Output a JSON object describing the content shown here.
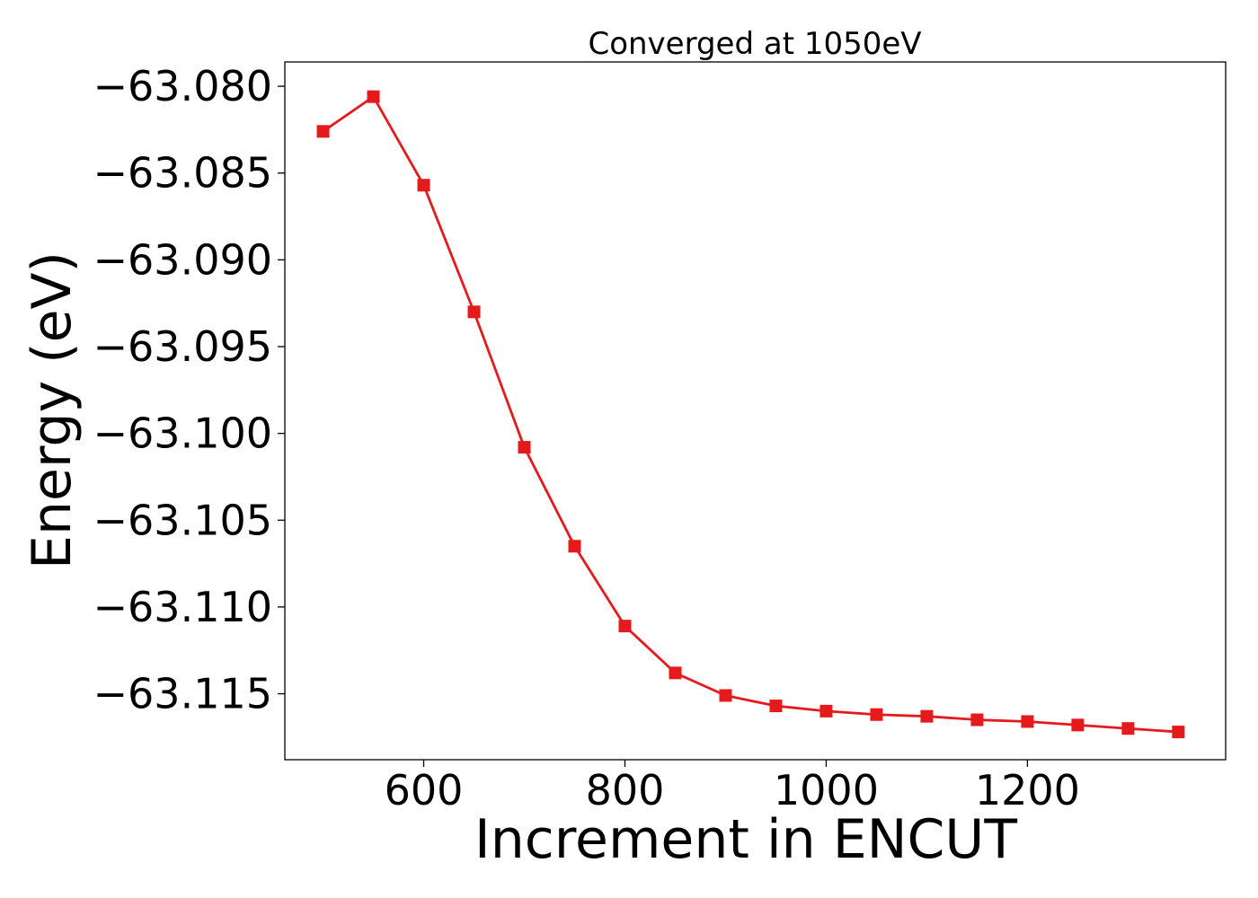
{
  "chart_data": {
    "type": "line",
    "title": "Converged at 1050eV",
    "xlabel": "Increment in ENCUT",
    "ylabel": "Energy (eV)",
    "xlim": [
      462,
      1397
    ],
    "ylim": [
      -63.1188,
      -63.0786
    ],
    "x_ticks": [
      600,
      800,
      1000,
      1200
    ],
    "y_ticks": [
      -63.08,
      -63.085,
      -63.09,
      -63.095,
      -63.1,
      -63.105,
      -63.11,
      -63.115
    ],
    "y_tick_labels": [
      "−63.080",
      "−63.085",
      "−63.090",
      "−63.095",
      "−63.100",
      "−63.105",
      "−63.110",
      "−63.115"
    ],
    "grid": false,
    "legend": "none",
    "color": "#e41a1c",
    "marker": "square",
    "series": [
      {
        "x": [
          500,
          550,
          600,
          650,
          700,
          750,
          800,
          850,
          900,
          950,
          1000,
          1050,
          1100,
          1150,
          1200,
          1250,
          1300,
          1350
        ],
        "y": [
          -63.0826,
          -63.0806,
          -63.0857,
          -63.093,
          -63.1008,
          -63.1065,
          -63.1111,
          -63.1138,
          -63.1151,
          -63.1157,
          -63.116,
          -63.1162,
          -63.1163,
          -63.1165,
          -63.1166,
          -63.1168,
          -63.117,
          -63.1172
        ]
      }
    ]
  }
}
